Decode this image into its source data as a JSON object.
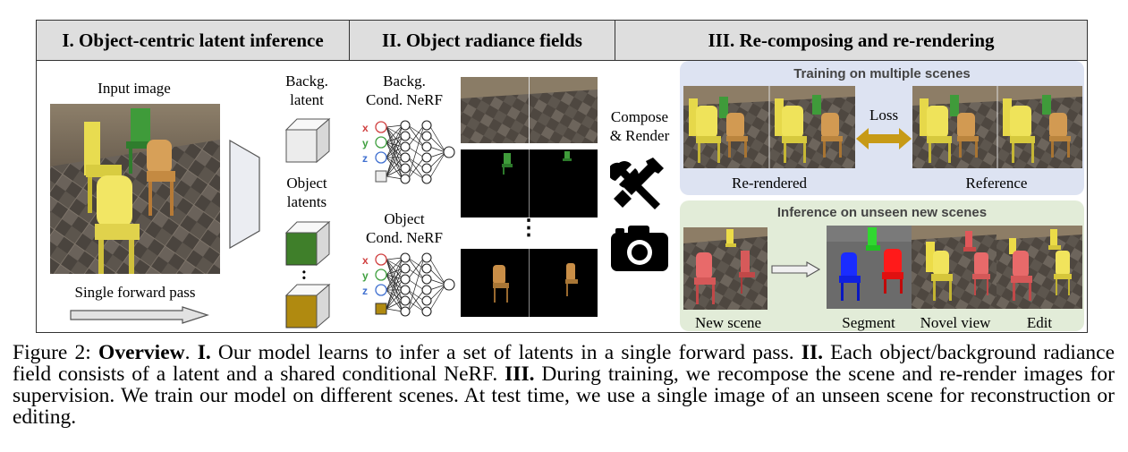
{
  "headers": {
    "s1": "I. Object-centric latent inference",
    "s2": "II. Object radiance fields",
    "s3": "III. Re-composing and re-rendering"
  },
  "section1": {
    "input_image": "Input image",
    "single_forward_pass": "Single forward pass",
    "backg_latent": [
      "Backg.",
      "latent"
    ],
    "object_latents": [
      "Object",
      "latents"
    ],
    "vdots": ":"
  },
  "section2": {
    "backg_nerf": [
      "Backg.",
      "Cond. NeRF"
    ],
    "object_nerf": [
      "Object",
      "Cond. NeRF"
    ],
    "coords": [
      "x",
      "y",
      "z"
    ],
    "vdots": "⋮"
  },
  "compose": [
    "Compose",
    "& Render"
  ],
  "training": {
    "title": "Training on multiple scenes",
    "loss": "Loss",
    "rerendered": "Re-rendered",
    "reference": "Reference"
  },
  "inference": {
    "title": "Inference on unseen new scenes",
    "new_scene": "New scene",
    "segment": "Segment",
    "novel_view": "Novel view",
    "edit": "Edit"
  },
  "caption": {
    "prefix": "Figure 2: ",
    "overview": "Overview",
    "dot": ". ",
    "i": "I.",
    "t1": " Our model learns to infer a set of latents in a single forward pass. ",
    "ii": "II.",
    "t2": " Each object/background radiance field consists of a latent and a shared conditional NeRF. ",
    "iii": "III.",
    "t3": " During training, we recompose the scene and re-render images for supervision. We train our model on different scenes. At test time, we use a single image of an unseen scene for reconstruction or editing."
  },
  "colors": {
    "training_panel": "#dde3f2",
    "inference_panel": "#e2ecd8",
    "arrow_gold": "#c79a16",
    "latent_green": "#3f7f2a",
    "latent_gold": "#b08a10"
  },
  "icons": [
    "arrow-right-icon",
    "encoder-trapezoid-icon",
    "cube-icon",
    "wrench-screwdriver-icon",
    "camera-icon",
    "double-arrow-icon"
  ]
}
